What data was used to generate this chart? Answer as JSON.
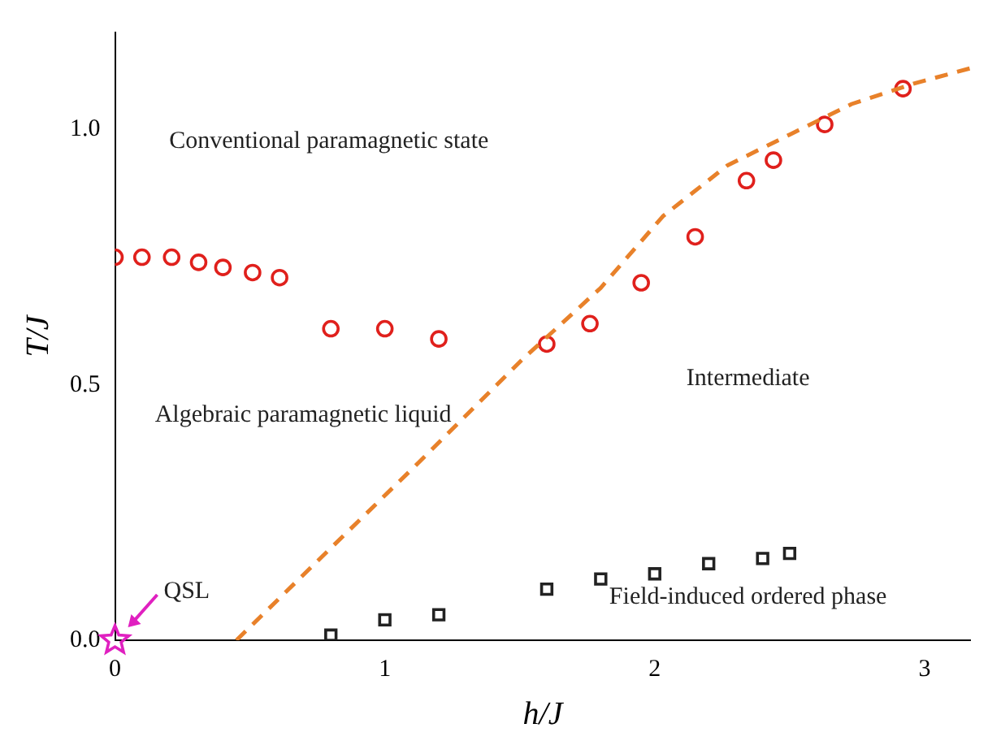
{
  "chart_data": {
    "type": "scatter",
    "xlabel": "h/J",
    "ylabel": "T/J",
    "xlim": [
      0,
      3.17
    ],
    "ylim": [
      0,
      1.19
    ],
    "xticks": [
      0,
      1,
      2,
      3
    ],
    "yticks": [
      {
        "value": 0,
        "label": "0.0"
      },
      {
        "value": 0.5,
        "label": "0.5"
      },
      {
        "value": 1,
        "label": "1.0"
      }
    ],
    "grid": false,
    "legend": false,
    "series": [
      {
        "type": "line",
        "line_style": "dashed",
        "marker": "none",
        "color": "#e8812a",
        "x": [
          0.45,
          0.76,
          1.11,
          1.51,
          1.8,
          2.03,
          2.27,
          2.5,
          2.73,
          2.96,
          3.17
        ],
        "values": [
          0,
          0.16,
          0.34,
          0.55,
          0.69,
          0.83,
          0.93,
          0.99,
          1.05,
          1.09,
          1.12
        ]
      },
      {
        "type": "scatter",
        "marker": "circle",
        "color": "#e0201c",
        "x": [
          0,
          0.1,
          0.21,
          0.31,
          0.4,
          0.51,
          0.61,
          0.8,
          1,
          1.2,
          1.6,
          1.76,
          1.95,
          2.15,
          2.34,
          2.44,
          2.63,
          2.92
        ],
        "values": [
          0.75,
          0.75,
          0.75,
          0.74,
          0.73,
          0.72,
          0.71,
          0.61,
          0.61,
          0.59,
          0.58,
          0.62,
          0.7,
          0.79,
          0.9,
          0.94,
          1.01,
          1.08
        ]
      },
      {
        "type": "scatter",
        "marker": "square",
        "color": "#222222",
        "x": [
          0.8,
          1,
          1.2,
          1.6,
          1.8,
          2,
          2.2,
          2.4,
          2.5
        ],
        "values": [
          0.01,
          0.04,
          0.05,
          0.1,
          0.12,
          0.13,
          0.15,
          0.16,
          0.17
        ]
      },
      {
        "type": "scatter",
        "marker": "star",
        "color": "#e020c0",
        "x": [
          0
        ],
        "values": [
          0
        ]
      }
    ],
    "annotations": [
      "Conventional paramagnetic state",
      "Algebraic paramagnetic liquid",
      "Intermediate",
      "Field-induced ordered phase",
      {
        "text": "QSL",
        "x": 0,
        "y": 0
      }
    ]
  }
}
